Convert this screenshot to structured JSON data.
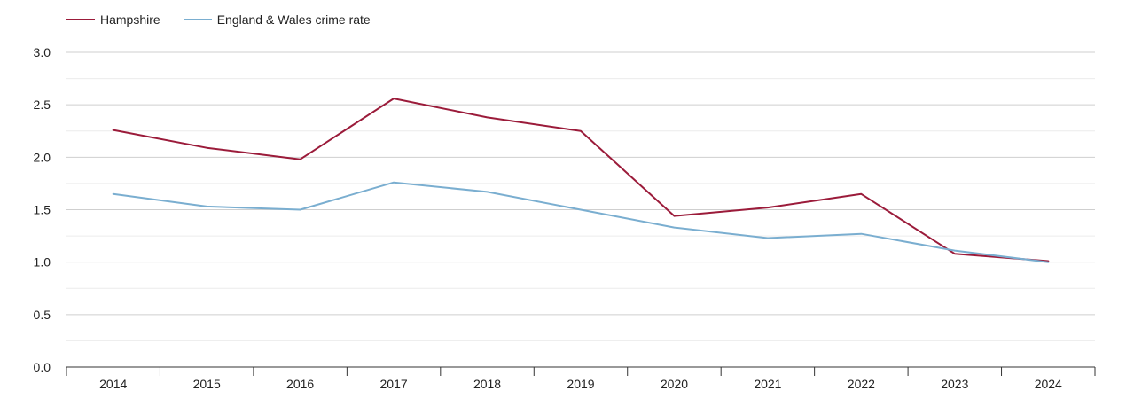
{
  "chart_data": {
    "type": "line",
    "title": "",
    "xlabel": "",
    "ylabel": "",
    "categories": [
      "2014",
      "2015",
      "2016",
      "2017",
      "2018",
      "2019",
      "2020",
      "2021",
      "2022",
      "2023",
      "2024"
    ],
    "ylim": [
      0,
      3.0
    ],
    "yticks": [
      "0.0",
      "0.5",
      "1.0",
      "1.5",
      "2.0",
      "2.5",
      "3.0"
    ],
    "grid": true,
    "legend_position": "top-left",
    "series": [
      {
        "name": "Hampshire",
        "color": "#9b1b3a",
        "values": [
          2.26,
          2.09,
          1.98,
          2.56,
          2.38,
          2.25,
          1.44,
          1.52,
          1.65,
          1.08,
          1.01
        ]
      },
      {
        "name": "England & Wales crime rate",
        "color": "#7aaed0",
        "values": [
          1.65,
          1.53,
          1.5,
          1.76,
          1.67,
          1.5,
          1.33,
          1.23,
          1.27,
          1.11,
          1.0
        ]
      }
    ]
  }
}
